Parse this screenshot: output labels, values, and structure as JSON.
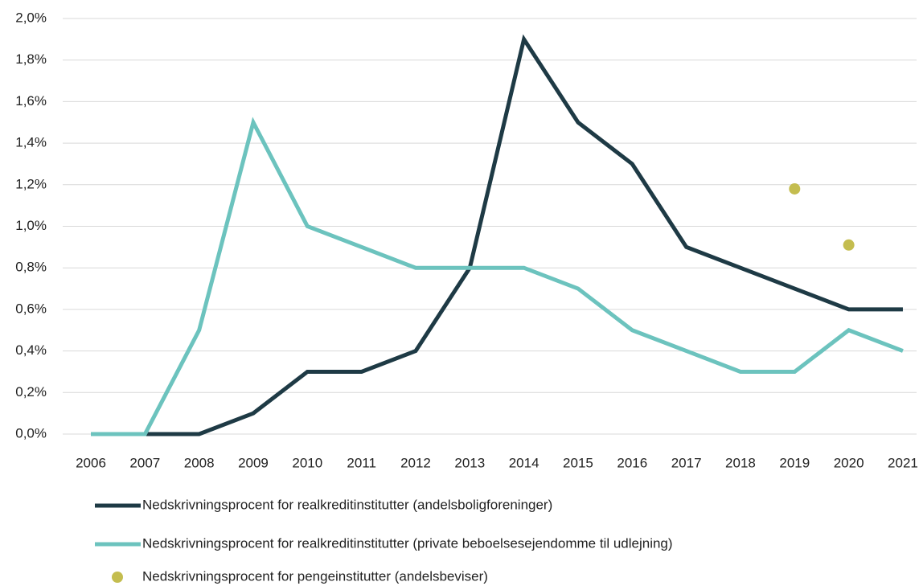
{
  "chart_data": {
    "type": "line",
    "categories": [
      "2006",
      "2007",
      "2008",
      "2009",
      "2010",
      "2011",
      "2012",
      "2013",
      "2014",
      "2015",
      "2016",
      "2017",
      "2018",
      "2019",
      "2020",
      "2021"
    ],
    "series": [
      {
        "name": "Nedskrivningsprocent for realkreditinstitutter (andelsboligforeninger)",
        "color": "#1e3a45",
        "type": "line",
        "values": [
          0,
          0,
          0,
          0.1,
          0.3,
          0.3,
          0.4,
          0.8,
          1.9,
          1.5,
          1.3,
          0.9,
          0.8,
          0.7,
          0.6,
          0.6
        ]
      },
      {
        "name": "Nedskrivningsprocent for realkreditinstitutter (private beboelsesejendomme til udlejning)",
        "color": "#6cc3be",
        "type": "line",
        "values": [
          0,
          0,
          0.5,
          1.5,
          1.0,
          0.9,
          0.8,
          0.8,
          0.8,
          0.7,
          0.5,
          0.4,
          0.3,
          0.3,
          0.5,
          0.4
        ]
      },
      {
        "name": "Nedskrivningsprocent for pengeinstitutter (andelsbeviser)",
        "color": "#c4bd4f",
        "type": "scatter",
        "values": [
          null,
          null,
          null,
          null,
          null,
          null,
          null,
          null,
          null,
          null,
          null,
          null,
          null,
          1.18,
          0.91,
          null
        ]
      }
    ],
    "ylim": [
      0,
      2.0
    ],
    "yticks": [
      {
        "value": 0,
        "label": "0,0%"
      },
      {
        "value": 0.2,
        "label": "0,2%"
      },
      {
        "value": 0.4,
        "label": "0,4%"
      },
      {
        "value": 0.6,
        "label": "0,6%"
      },
      {
        "value": 0.8,
        "label": "0,8%"
      },
      {
        "value": 1.0,
        "label": "1,0%"
      },
      {
        "value": 1.2,
        "label": "1,2%"
      },
      {
        "value": 1.4,
        "label": "1,4%"
      },
      {
        "value": 1.6,
        "label": "1,6%"
      },
      {
        "value": 1.8,
        "label": "1,8%"
      },
      {
        "value": 2.0,
        "label": "2,0%"
      }
    ],
    "grid": true,
    "legend": "bottom"
  }
}
